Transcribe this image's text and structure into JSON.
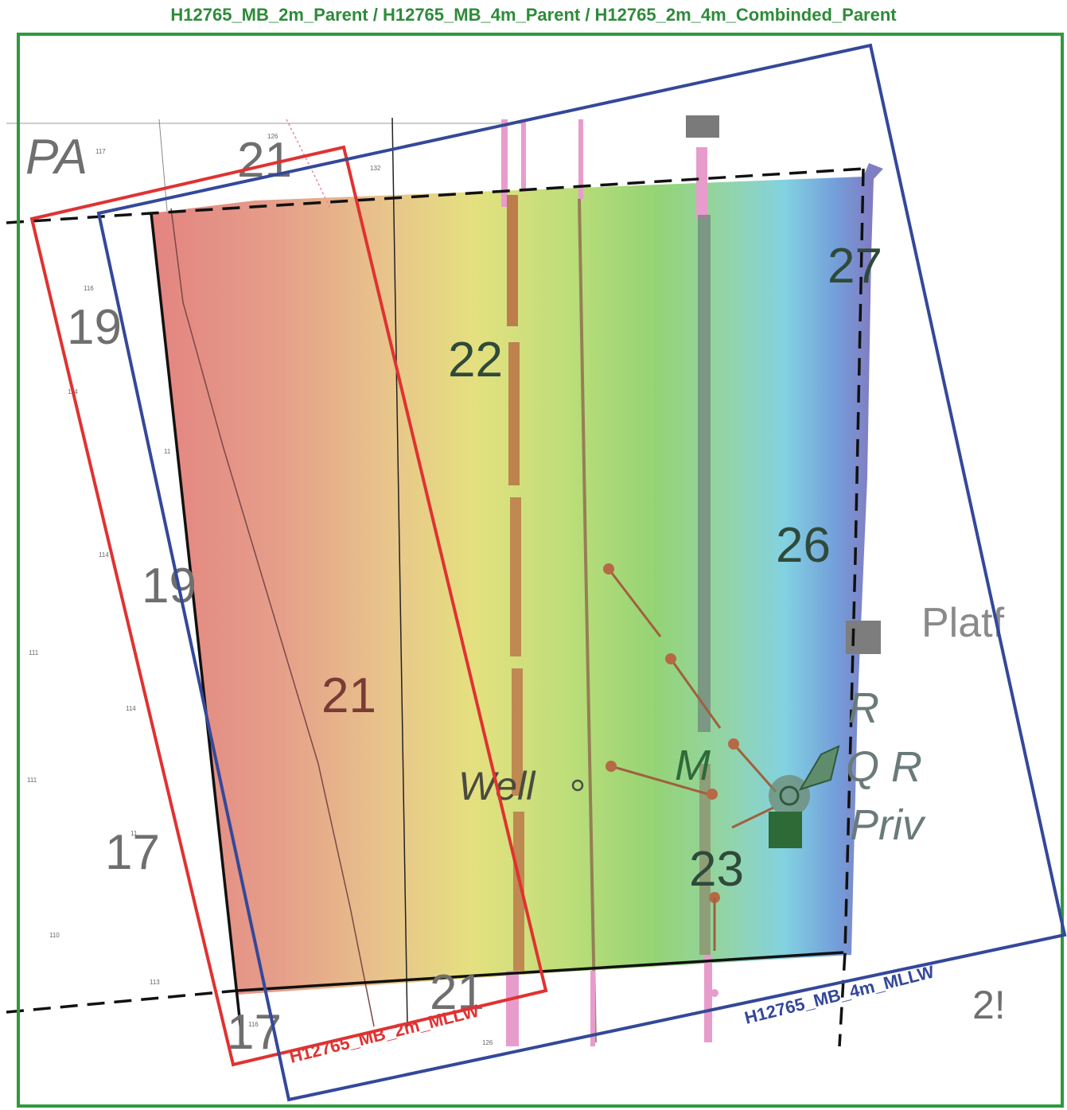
{
  "title": "H12765_MB_2m_Parent / H12765_MB_4m_Parent / H12765_2m_4m_Combinded_Parent",
  "colors": {
    "parent_frame": "#2e9a3e",
    "mb_2m_frame": "#e03232",
    "mb_4m_frame": "#34489a",
    "chart_text": "#707070",
    "pink_feature": "#e89ccc"
  },
  "surfaces": {
    "mb_2m": "H12765_MB_2m_MLLW",
    "mb_4m": "H12765_MB_4m_MLLW"
  },
  "soundings": {
    "s_pa": "PA",
    "s_21_top": "21",
    "s_19_upper": "19",
    "s_22": "22",
    "s_27": "27",
    "s_26": "26",
    "s_19_mid": "19",
    "s_21_mid": "21",
    "s_17": "17",
    "s_23": "23",
    "s_21_bottom": "21",
    "s_17_bottom": "17",
    "s_25_partial": "2!"
  },
  "small_soundings": {
    "t117": "117",
    "t126": "126",
    "t132": "132",
    "t116": "116",
    "t114a": "114",
    "t11": "11",
    "t114b": "114",
    "t111a": "111",
    "t114c": "114",
    "t111b": "111",
    "t11x": "11",
    "t110": "110",
    "t113": "113",
    "t116b": "116",
    "t126b": "126"
  },
  "labels": {
    "well": "Well",
    "platform": "Platf",
    "m": "M",
    "r": "R",
    "qr": "Q R",
    "priv": "Priv"
  },
  "icons": [
    "platform-square-icon",
    "private-structure-icon",
    "well-circle-icon",
    "pipeline-marker-icon"
  ]
}
